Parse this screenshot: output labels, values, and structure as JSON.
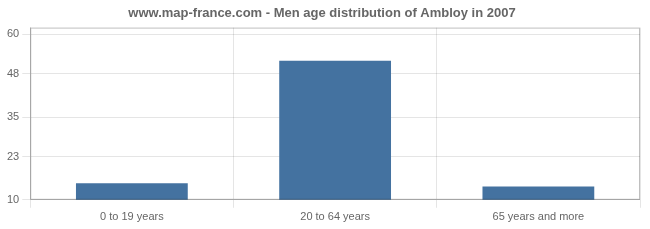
{
  "chart_data": {
    "type": "bar",
    "title": "www.map-france.com - Men age distribution of Ambloy in 2007",
    "categories": [
      "0 to 19 years",
      "20 to 64 years",
      "65 years and more"
    ],
    "values": [
      15,
      52,
      14
    ],
    "color": "#4472a0",
    "ylim": [
      10,
      62
    ],
    "yticks": [
      10,
      23,
      35,
      48,
      60
    ],
    "grid": true
  }
}
